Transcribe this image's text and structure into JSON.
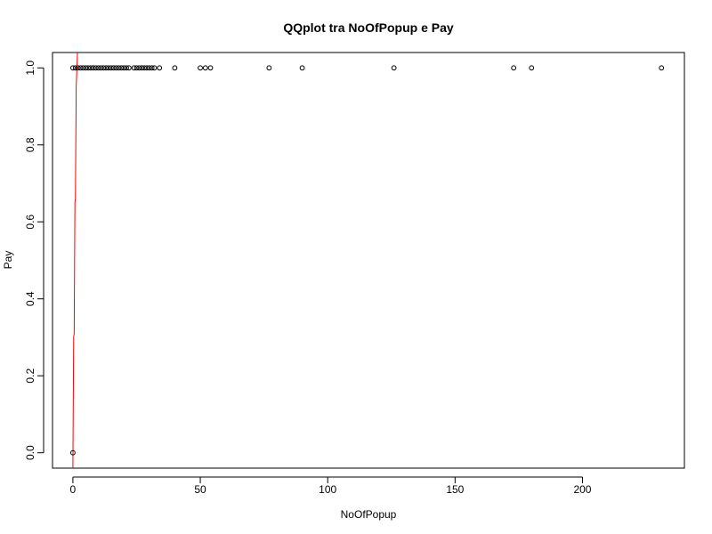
{
  "chart_data": {
    "type": "scatter",
    "title": "QQplot tra NoOfPopup e Pay",
    "xlabel": "NoOfPopup",
    "ylabel": "Pay",
    "xlim": [
      -8,
      240
    ],
    "ylim": [
      -0.04,
      1.04
    ],
    "x_ticks": [
      0,
      50,
      100,
      150,
      200
    ],
    "x_tick_labels": [
      "0",
      "50",
      "100",
      "150",
      "200"
    ],
    "y_ticks": [
      0,
      0.2,
      0.4,
      0.6,
      0.8,
      1
    ],
    "y_tick_labels": [
      "0.0",
      "0.2",
      "0.4",
      "0.6",
      "0.8",
      "1.0"
    ],
    "grid": false,
    "points": {
      "x": [
        0,
        0,
        1,
        2,
        3,
        4,
        5,
        6,
        7,
        8,
        9,
        10,
        11,
        12,
        13,
        14,
        15,
        16,
        17,
        18,
        19,
        20,
        21,
        22,
        24,
        25,
        26,
        27,
        28,
        29,
        30,
        31,
        32,
        34,
        40,
        50,
        52,
        54,
        77,
        90,
        126,
        173,
        180,
        231
      ],
      "y": [
        0,
        1,
        1,
        1,
        1,
        1,
        1,
        1,
        1,
        1,
        1,
        1,
        1,
        1,
        1,
        1,
        1,
        1,
        1,
        1,
        1,
        1,
        1,
        1,
        1,
        1,
        1,
        1,
        1,
        1,
        1,
        1,
        1,
        1,
        1,
        1,
        1,
        1,
        1,
        1,
        1,
        1,
        1,
        1
      ]
    },
    "reference_line": {
      "x": [
        0,
        0.3,
        0.5,
        0.8,
        1.0,
        1.3,
        1.8
      ],
      "y": [
        -0.04,
        0.3,
        0.31,
        0.65,
        0.66,
        0.95,
        1.04
      ],
      "color": "#ff0000"
    },
    "point_color": "#000000",
    "axis_color": "#000000"
  }
}
